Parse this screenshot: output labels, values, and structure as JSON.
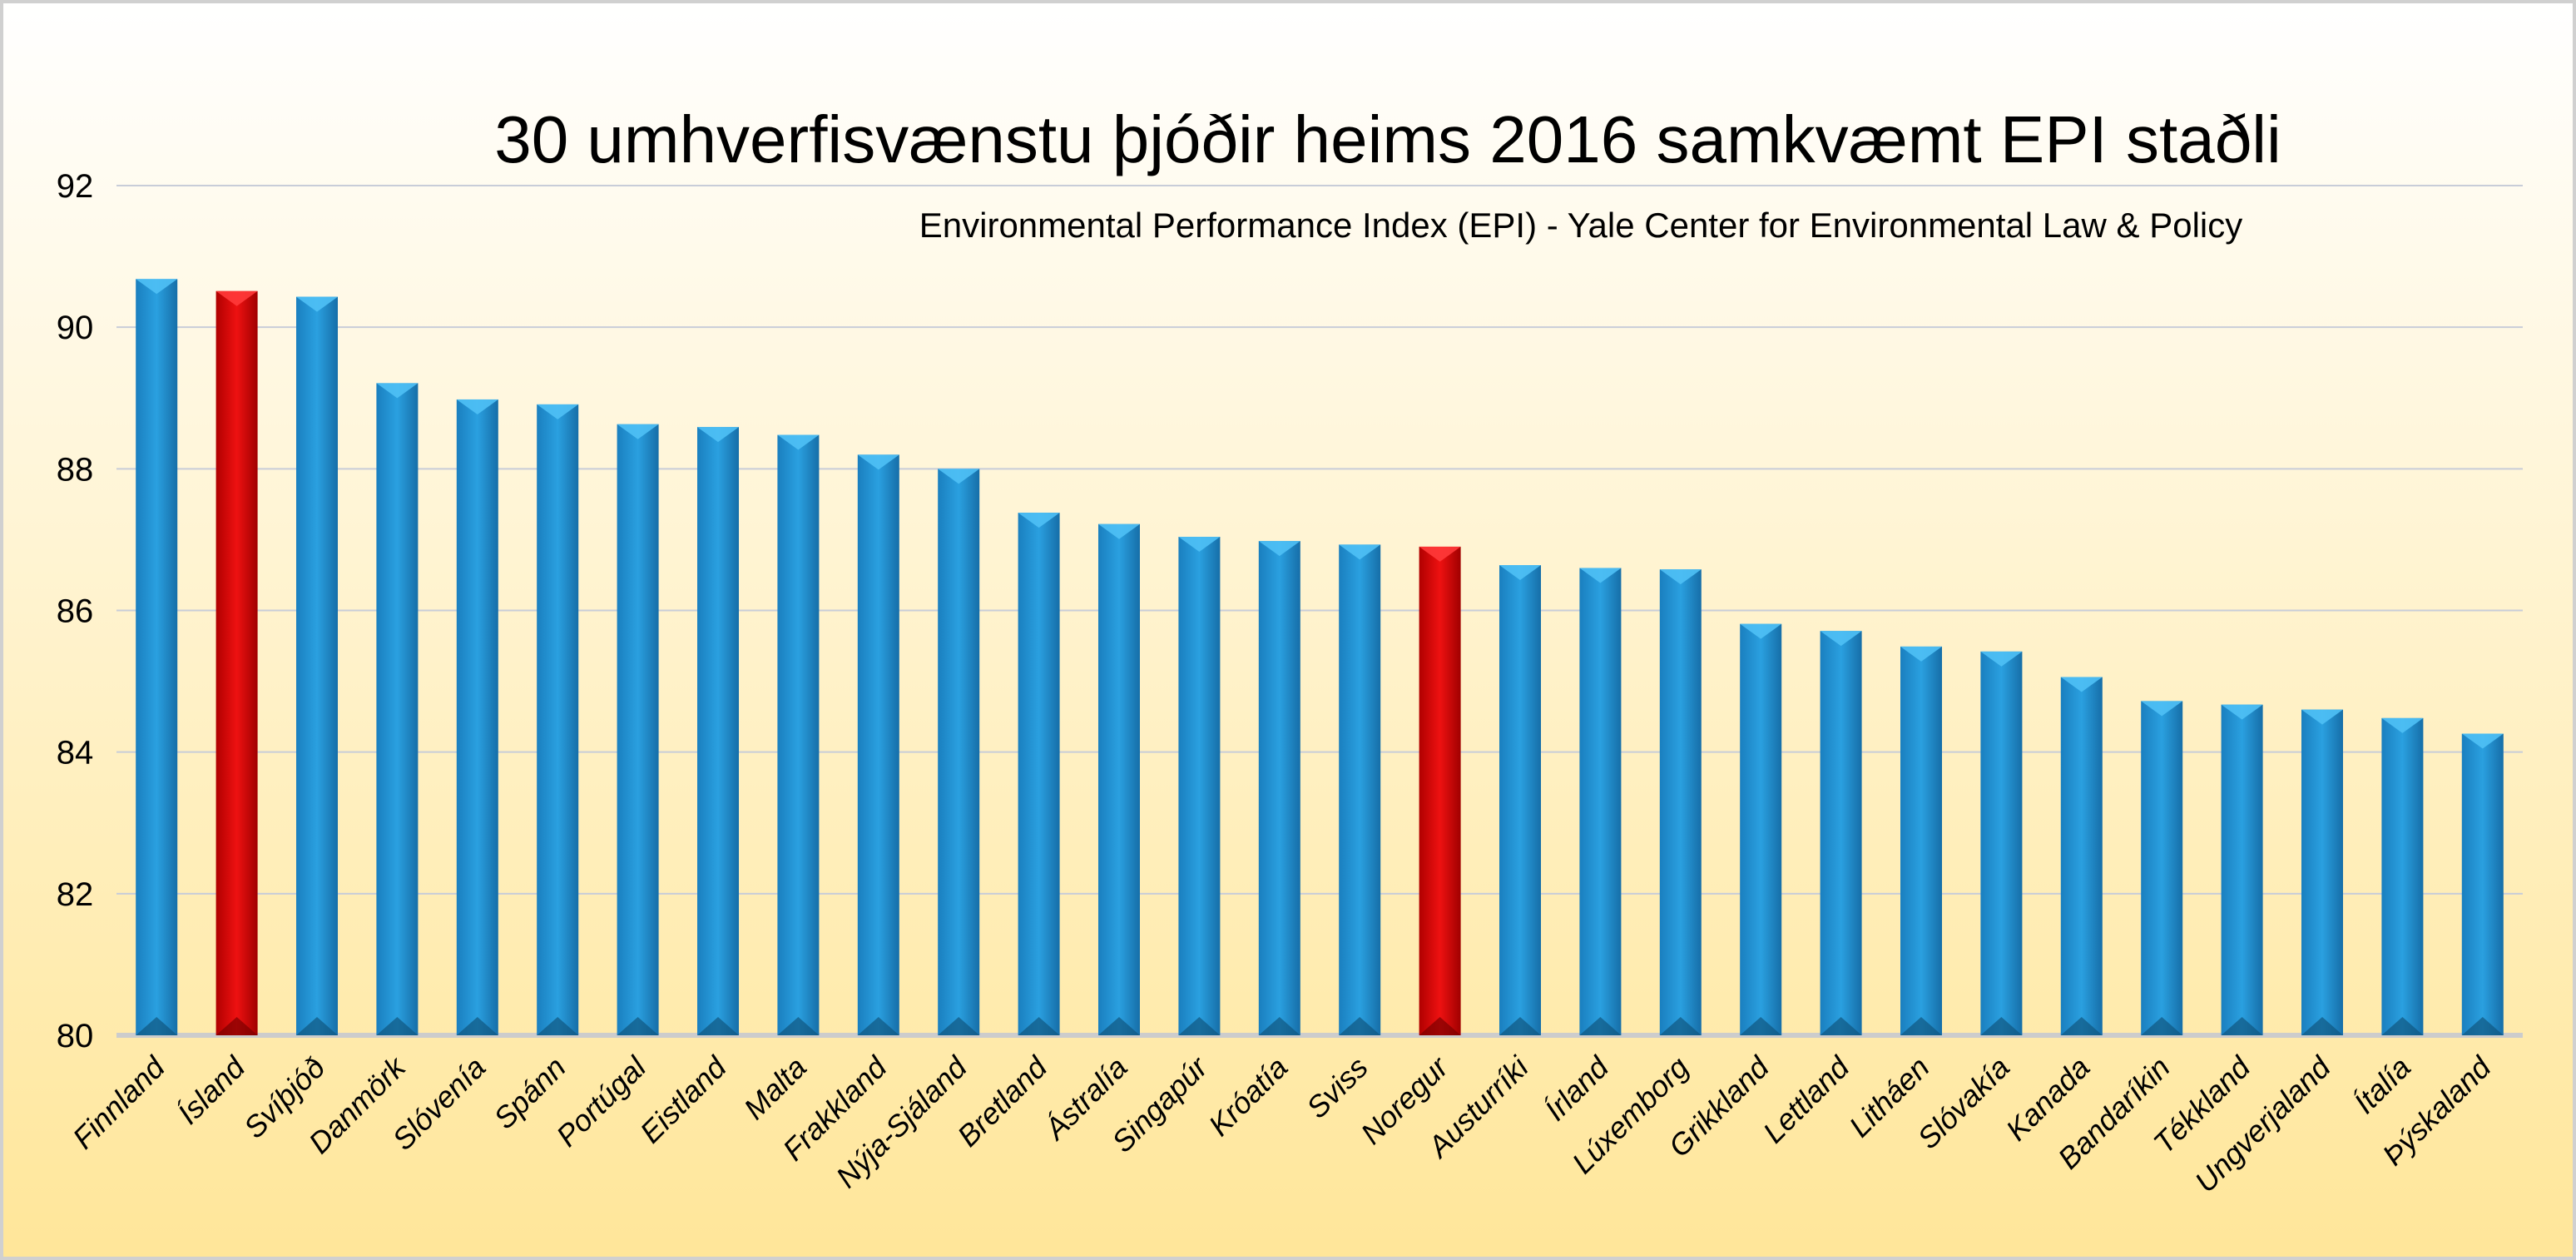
{
  "chart_data": {
    "type": "bar",
    "title": "30 umhverfisvænstu þjóðir heims 2016 samkvæmt EPI staðli",
    "subtitle": "Environmental Performance Index (EPI) - Yale Center for Environmental Law & Policy",
    "xlabel": "",
    "ylabel": "",
    "ylim": [
      80,
      92
    ],
    "yticks": [
      80,
      82,
      84,
      86,
      88,
      90,
      92
    ],
    "grid": true,
    "legend": "none",
    "categories": [
      "Finnland",
      "Ísland",
      "Svíþjóð",
      "Danmörk",
      "Slóvenía",
      "Spánn",
      "Portúgal",
      "Eistland",
      "Malta",
      "Frakkland",
      "Nýja-Sjáland",
      "Bretland",
      "Ástralía",
      "Singapúr",
      "Króatía",
      "Sviss",
      "Noregur",
      "Austurríki",
      "Írland",
      "Lúxemborg",
      "Grikkland",
      "Lettland",
      "Litháen",
      "Slóvakía",
      "Kanada",
      "Bandaríkin",
      "Tékkland",
      "Ungverjaland",
      "Ítalía",
      "Þýskaland"
    ],
    "values": [
      90.68,
      90.51,
      90.43,
      89.21,
      88.98,
      88.91,
      88.63,
      88.59,
      88.48,
      88.2,
      88.0,
      87.38,
      87.22,
      87.04,
      86.98,
      86.93,
      86.9,
      86.64,
      86.6,
      86.58,
      85.81,
      85.71,
      85.49,
      85.42,
      85.06,
      84.72,
      84.67,
      84.6,
      84.48,
      84.26
    ],
    "highlighted": [
      "Ísland",
      "Noregur"
    ],
    "colors": {
      "bar": "#1f8fd0",
      "highlight": "#d40000",
      "background_top": "#ffffff",
      "background_bottom": "#ffe699",
      "grid": "#c8cdd8"
    }
  }
}
